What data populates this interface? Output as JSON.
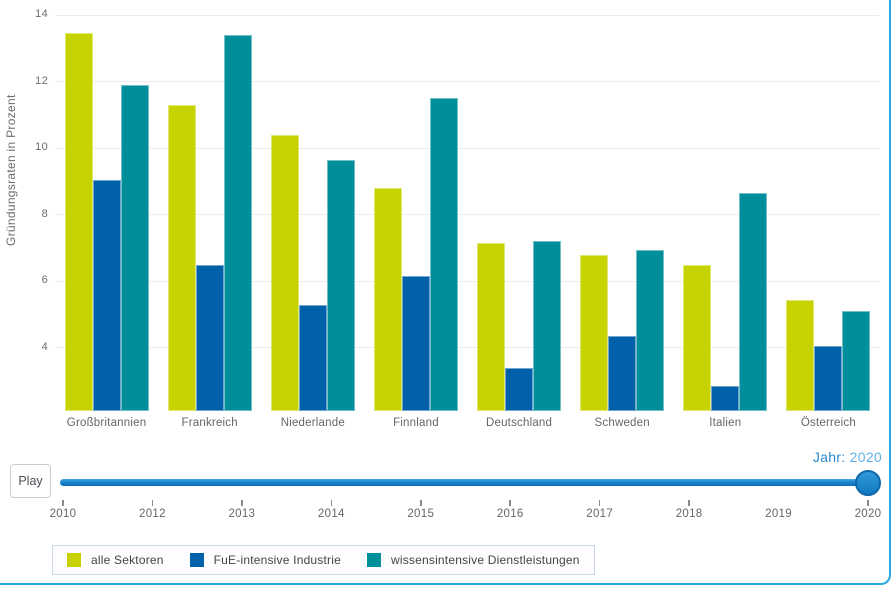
{
  "frame": {
    "accent_color": "#29ABE2"
  },
  "chart_data": {
    "type": "bar",
    "title": "",
    "ylabel": "Gründungsraten in Prozent",
    "xlabel": "",
    "ylim": [
      2.1,
      14
    ],
    "yticks": [
      4,
      6,
      8,
      10,
      12,
      14
    ],
    "grid": true,
    "legend_position": "bottom",
    "categories": [
      "Großbritannien",
      "Frankreich",
      "Niederlande",
      "Finnland",
      "Deutschland",
      "Schweden",
      "Italien",
      "Österreich"
    ],
    "series": [
      {
        "name": "alle Sektoren",
        "color": "#C6D300",
        "values": [
          13.45,
          11.3,
          10.4,
          8.8,
          7.15,
          6.8,
          6.5,
          5.45
        ]
      },
      {
        "name": "FuE-intensive Industrie",
        "color": "#0060A9",
        "values": [
          9.05,
          6.5,
          5.3,
          6.15,
          3.4,
          4.35,
          2.85,
          4.05
        ]
      },
      {
        "name": "wissensintensive Dienstleistungen",
        "color": "#008E9B",
        "values": [
          11.9,
          13.4,
          9.65,
          11.5,
          7.2,
          6.95,
          8.65,
          5.1
        ]
      }
    ]
  },
  "slider": {
    "play_label": "Play",
    "year_label": "Jahr:",
    "year_value": "2020",
    "current_year": 2020,
    "track_color": "#1583CC",
    "years": [
      {
        "label": "2010",
        "tick": true
      },
      {
        "label": "2012",
        "tick": true
      },
      {
        "label": "2013",
        "tick": true
      },
      {
        "label": "2014",
        "tick": true
      },
      {
        "label": "2015",
        "tick": true
      },
      {
        "label": "2016",
        "tick": true
      },
      {
        "label": "2017",
        "tick": true
      },
      {
        "label": "2018",
        "tick": true
      },
      {
        "label": "2019",
        "tick": false
      },
      {
        "label": "2020",
        "tick": true
      }
    ]
  },
  "legend": {
    "border_color": "#C9D6E4"
  }
}
